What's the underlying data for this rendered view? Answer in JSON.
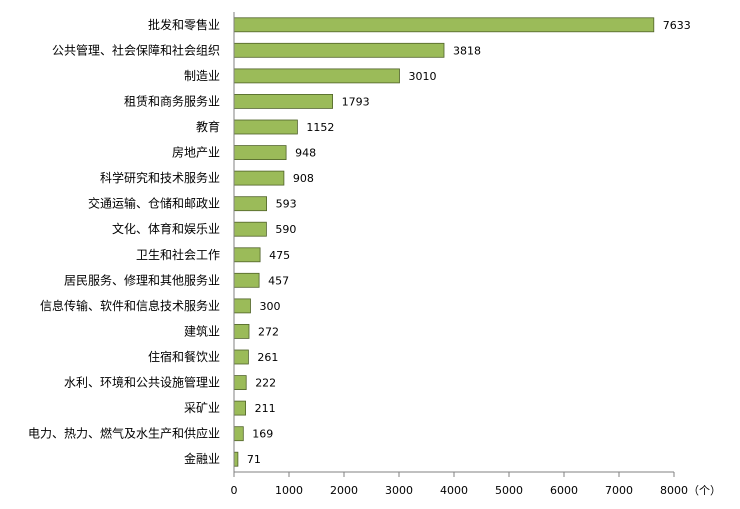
{
  "chart_data": {
    "type": "bar",
    "orientation": "horizontal",
    "categories": [
      "批发和零售业",
      "公共管理、社会保障和社会组织",
      "制造业",
      "租赁和商务服务业",
      "教育",
      "房地产业",
      "科学研究和技术服务业",
      "交通运输、仓储和邮政业",
      "文化、体育和娱乐业",
      "卫生和社会工作",
      "居民服务、修理和其他服务业",
      "信息传输、软件和信息技术服务业",
      "建筑业",
      "住宿和餐饮业",
      "水利、环境和公共设施管理业",
      "采矿业",
      "电力、热力、燃气及水生产和供应业",
      "金融业"
    ],
    "values": [
      7633,
      3818,
      3010,
      1793,
      1152,
      948,
      908,
      593,
      590,
      475,
      457,
      300,
      272,
      261,
      222,
      211,
      169,
      71
    ],
    "value_labels": [
      "7633",
      "3818",
      "3010",
      "1793",
      "1152",
      "948",
      "908",
      "593",
      "590",
      "475",
      "457",
      "300",
      "272",
      "261",
      "222",
      "211",
      "169",
      "71"
    ],
    "xlim": [
      0,
      8000
    ],
    "x_ticks": [
      "0",
      "1000",
      "2000",
      "3000",
      "4000",
      "5000",
      "6000",
      "7000",
      "8000"
    ],
    "x_unit": "（个）",
    "grid": false,
    "bar_color": "#9bbb59",
    "bar_edge_color": "#4f6228",
    "title": "",
    "xlabel": "",
    "ylabel": ""
  }
}
